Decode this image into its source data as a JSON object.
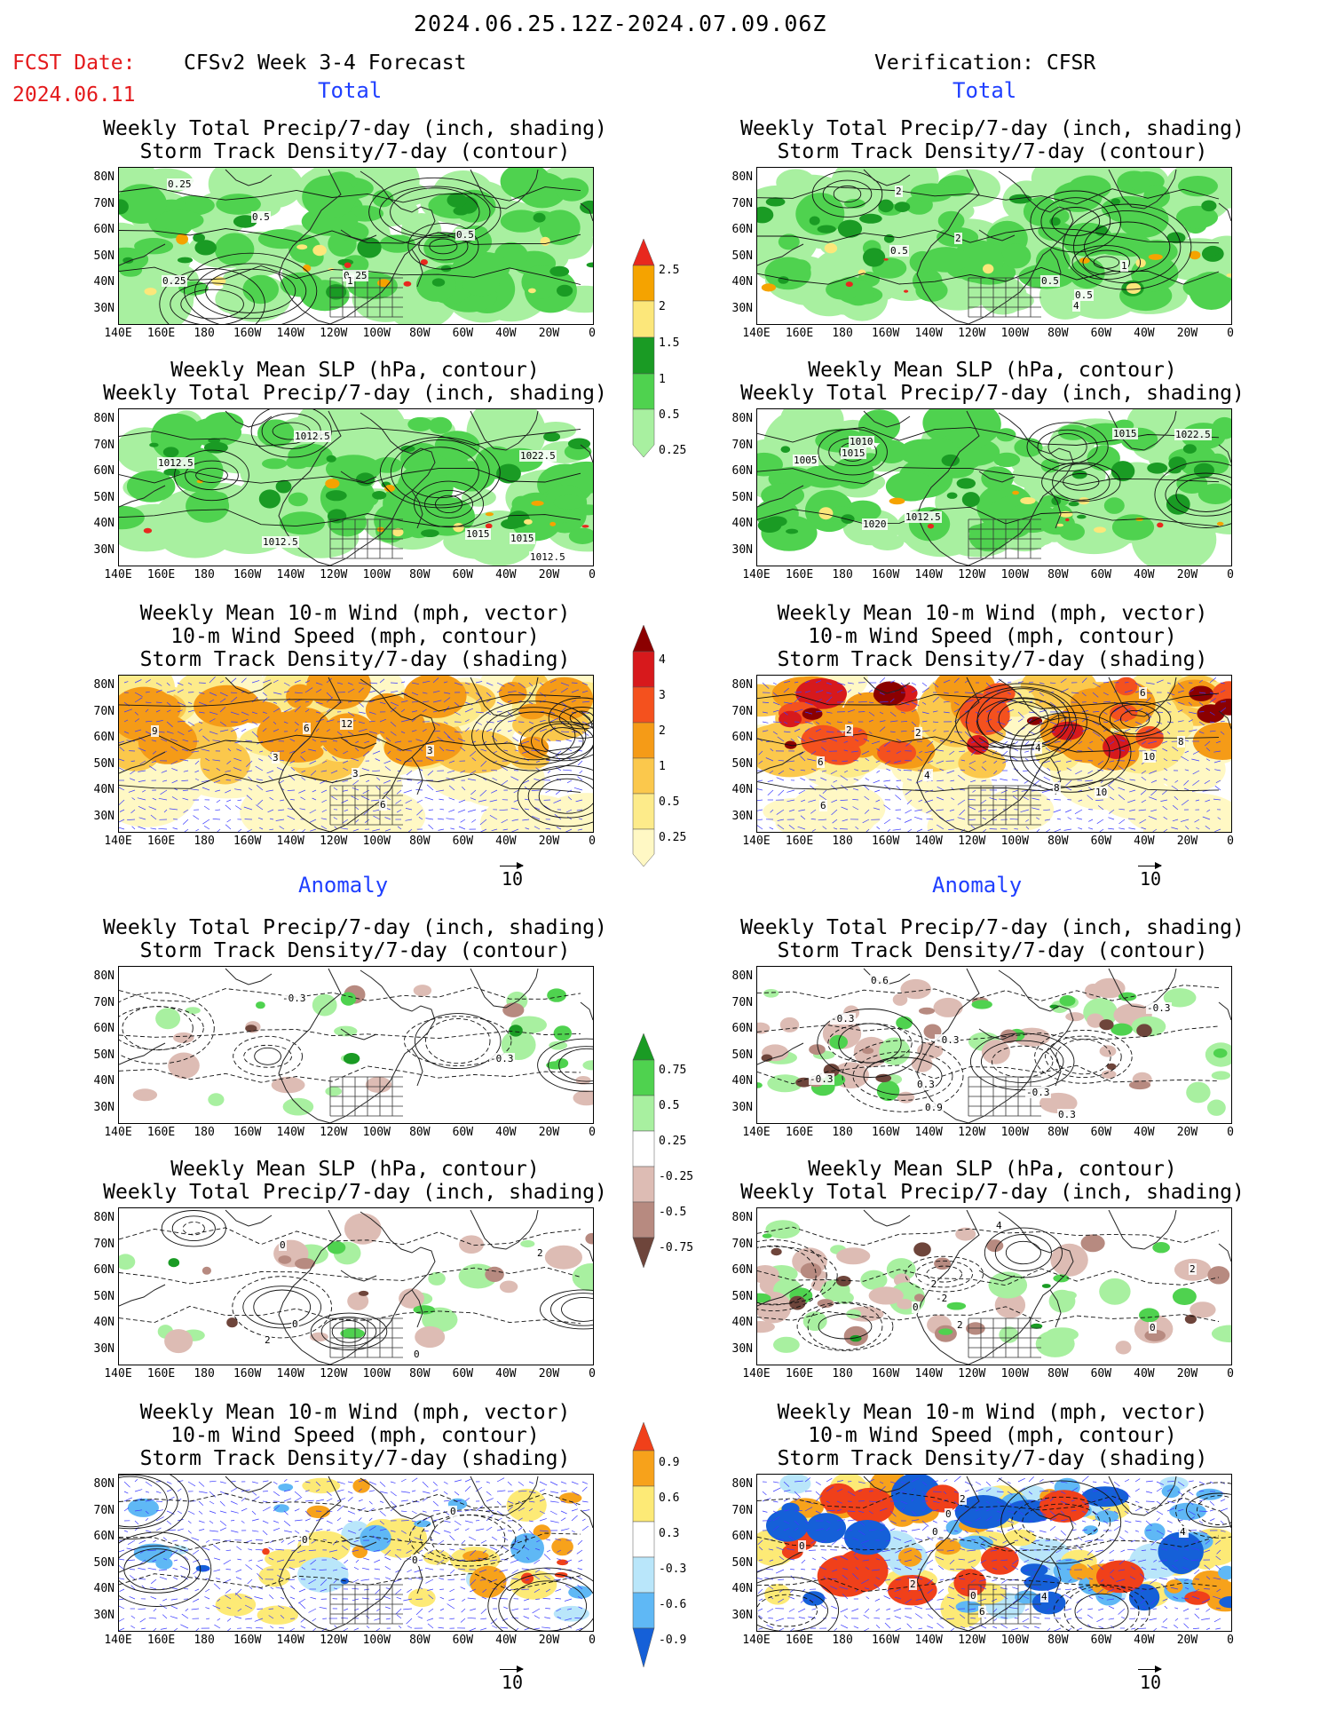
{
  "header": {
    "time_range": "2024.06.25.12Z-2024.07.09.06Z",
    "fcst_date_label": "FCST Date:",
    "fcst_date_value": "2024.06.11",
    "left_title": "CFSv2 Week 3-4 Forecast",
    "right_title": "Verification: CFSR"
  },
  "sections": {
    "total_left": "Total",
    "total_right": "Total",
    "anomaly_left": "Anomaly",
    "anomaly_right": "Anomaly"
  },
  "panel_titles": {
    "precip_storm": [
      "Weekly Total Precip/7-day (inch, shading)",
      "Storm Track Density/7-day (contour)"
    ],
    "slp_precip": [
      "Weekly Mean SLP (hPa, contour)",
      "Weekly Total Precip/7-day (inch, shading)"
    ],
    "wind_storm": [
      "Weekly Mean 10-m Wind (mph, vector)",
      "10-m Wind Speed (mph, contour)",
      "Storm Track Density/7-day (shading)"
    ]
  },
  "axes": {
    "lat_ticks": [
      "80N",
      "70N",
      "60N",
      "50N",
      "40N",
      "30N"
    ],
    "lon_ticks": [
      "140E",
      "160E",
      "180",
      "160W",
      "140W",
      "120W",
      "100W",
      "80W",
      "60W",
      "40W",
      "20W",
      "0"
    ]
  },
  "vector_ref": "10",
  "colorbars": {
    "precip_total": {
      "labels": [
        "2.5",
        "2",
        "1.5",
        "1",
        "0.5",
        "0.25"
      ],
      "colors": [
        "#e8281e",
        "#f5a300",
        "#fce77a",
        "#1a9b24",
        "#4fd24f",
        "#a8f0a0"
      ]
    },
    "storm_total": {
      "labels": [
        "4",
        "3",
        "2",
        "1",
        "0.5",
        "0.25"
      ],
      "colors": [
        "#8b0000",
        "#d7191c",
        "#f4511e",
        "#f59b17",
        "#fbc84c",
        "#fdeb8a",
        "#fff8c4"
      ]
    },
    "precip_anom": {
      "labels": [
        "0.75",
        "0.5",
        "0.25",
        "-0.25",
        "-0.5",
        "-0.75"
      ],
      "colors": [
        "#1a9b24",
        "#4fd24f",
        "#a8f0a0",
        "#ffffff",
        "#ddbcb4",
        "#b78a80",
        "#6e453b"
      ]
    },
    "storm_anom": {
      "labels": [
        "0.9",
        "0.6",
        "0.3",
        "-0.3",
        "-0.6",
        "-0.9"
      ],
      "colors": [
        "#f0401a",
        "#f7a21b",
        "#fdea76",
        "#ffffff",
        "#b9e6fa",
        "#5fb8f5",
        "#1560d8"
      ]
    }
  },
  "contour_labels": {
    "p1l": [
      "0.5",
      "0.25",
      "0.25",
      "0.25",
      "1",
      "0.5"
    ],
    "p1r": [
      "2",
      "0.5",
      "4",
      "2",
      "0.5",
      "1",
      "0.5"
    ],
    "p2l": [
      "1012.5",
      "1012.5",
      "1012.5",
      "1015",
      "1012.5",
      "1015",
      "1022.5"
    ],
    "p2r": [
      "1012.5",
      "1010",
      "1005",
      "1015",
      "1015",
      "1022.5",
      "1020"
    ],
    "p3l": [
      "3",
      "6",
      "3",
      "3",
      "6",
      "9",
      "12"
    ],
    "p3r": [
      "2",
      "4",
      "2",
      "6",
      "4",
      "6",
      "10",
      "8",
      "10",
      "6",
      "8",
      "2"
    ],
    "p4l": [
      "-0.3",
      "-0.3"
    ],
    "p4r": [
      "0.9",
      "-0.3",
      "0.3",
      "-0.3",
      "-0.3",
      "0.6",
      "0.3",
      "-0.3",
      "-0.3"
    ],
    "p5l": [
      "0",
      "2",
      "0",
      "2",
      "0"
    ],
    "p5r": [
      "-2",
      "4",
      "2",
      "0",
      "2",
      "-2",
      "0"
    ],
    "p6l": [
      "0",
      "0",
      "0"
    ],
    "p6r": [
      "0",
      "0",
      "2",
      "0",
      "4",
      "6",
      "0",
      "2",
      "0",
      "4"
    ]
  }
}
